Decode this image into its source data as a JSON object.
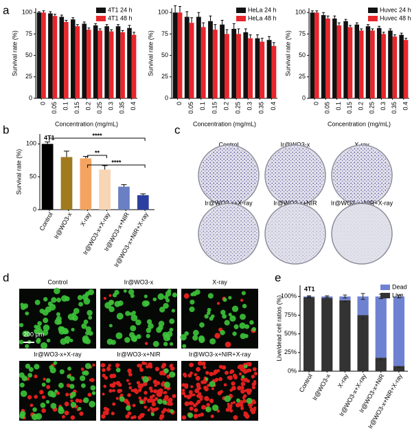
{
  "chart_data": [
    {
      "panel": "a",
      "type": "bar",
      "ylabel": "Survival rate (%)",
      "xlabel": "Concentration (mg/mL)",
      "categories": [
        "0",
        "0.05",
        "0.1",
        "0.15",
        "0.2",
        "0.25",
        "0.3",
        "0.35",
        "0.4"
      ],
      "series": [
        {
          "name": "4T1 24 h",
          "color": "#111111",
          "values": [
            100,
            99,
            95,
            92,
            87,
            85,
            84,
            84,
            82
          ],
          "errors": [
            1,
            2,
            2,
            2,
            2,
            2,
            2,
            2,
            3
          ]
        },
        {
          "name": "4T1 48 h",
          "color": "#e8262c",
          "values": [
            100,
            96,
            89,
            84,
            80,
            79,
            78,
            77,
            74
          ],
          "errors": [
            2,
            2,
            2,
            2,
            2,
            2,
            2,
            2,
            3
          ]
        }
      ],
      "ylim": [
        0,
        105
      ],
      "yticks": [
        0,
        25,
        50,
        75,
        100
      ],
      "legend": "upper right"
    },
    {
      "type": "bar",
      "ylabel": "Survival rate (%)",
      "xlabel": "Concentration (mg/mL)",
      "categories": [
        "0",
        "0.05",
        "0.1",
        "0.15",
        "0.2",
        "0.25",
        "0.3",
        "0.35",
        "0.4"
      ],
      "series": [
        {
          "name": "HeLa 24 h",
          "color": "#111111",
          "values": [
            100,
            95,
            95,
            90,
            86,
            81,
            77,
            70,
            68
          ],
          "errors": [
            8,
            6,
            5,
            6,
            5,
            6,
            4,
            4,
            4
          ]
        },
        {
          "name": "HeLa 48 h",
          "color": "#e8262c",
          "values": [
            100,
            88,
            83,
            80,
            75,
            75,
            70,
            66,
            61
          ],
          "errors": [
            7,
            6,
            5,
            6,
            5,
            6,
            4,
            4,
            4
          ]
        }
      ],
      "ylim": [
        0,
        105
      ],
      "yticks": [
        0,
        25,
        50,
        75,
        100
      ],
      "legend": "upper right"
    },
    {
      "type": "bar",
      "ylabel": "Survival rate (%)",
      "xlabel": "Concentration (mg/mL)",
      "categories": [
        "0",
        "0.05",
        "0.1",
        "0.15",
        "0.2",
        "0.25",
        "0.3",
        "0.35",
        "0.4"
      ],
      "series": [
        {
          "name": "Huvec 24 h",
          "color": "#111111",
          "values": [
            100,
            97,
            93,
            90,
            86,
            84,
            82,
            79,
            74
          ],
          "errors": [
            2,
            3,
            3,
            2,
            2,
            2,
            2,
            2,
            2
          ]
        },
        {
          "name": "Huvec 48 h",
          "color": "#e8262c",
          "values": [
            100,
            93,
            85,
            83,
            79,
            79,
            75,
            72,
            68
          ],
          "errors": [
            2,
            3,
            3,
            2,
            2,
            2,
            2,
            2,
            2
          ]
        }
      ],
      "ylim": [
        0,
        105
      ],
      "yticks": [
        0,
        25,
        50,
        75,
        100
      ],
      "legend": "upper right"
    },
    {
      "panel": "b",
      "type": "bar",
      "ylabel": "Survival rate (%)",
      "annotation": "4T1",
      "categories": [
        "Control",
        "Ir@WO3-x",
        "X-ray",
        "Ir@WO3-x+X-ray",
        "Ir@WO3-x+NIR",
        "Ir@WO3-x+NIR+X-ray"
      ],
      "values": [
        100,
        80,
        78,
        61,
        35,
        22
      ],
      "errors": [
        3,
        9,
        3,
        6,
        3,
        2
      ],
      "colors": [
        "#000000",
        "#a07a1e",
        "#f4a460",
        "#f8d5b4",
        "#6a7fc4",
        "#2b3fa0"
      ],
      "ylim": [
        0,
        115
      ],
      "yticks": [
        0,
        50,
        100
      ],
      "significance": [
        "****",
        "**",
        "****"
      ]
    },
    {
      "panel": "e",
      "type": "stacked_bar",
      "ylabel": "Live/dead cell ratios (%)",
      "annotation": "4T1",
      "categories": [
        "Control",
        "Ir@WO3-x",
        "X-ray",
        "Ir@WO3-x+X-ray",
        "Ir@WO3-x+NIR",
        "Ir@WO3-x+NIR+X-ray"
      ],
      "series": [
        {
          "name": "Live",
          "color": "#333333",
          "values": [
            99,
            98,
            95,
            75,
            18,
            7
          ],
          "errors": [
            1,
            1,
            2,
            5,
            3,
            2
          ]
        },
        {
          "name": "Dead",
          "color": "#6f82d2",
          "values": [
            1,
            2,
            5,
            25,
            82,
            93
          ],
          "errors": [
            1,
            1,
            2,
            4,
            3,
            2
          ]
        }
      ],
      "ylim": [
        0,
        115
      ],
      "yticks": [
        {
          "value": 0,
          "label": "0%"
        },
        {
          "value": 25,
          "label": "25%"
        },
        {
          "value": 50,
          "label": "50%"
        },
        {
          "value": 75,
          "label": "75%"
        },
        {
          "value": 100,
          "label": "100%"
        }
      ],
      "legend": "upper right"
    }
  ],
  "panel_c": {
    "label": "c",
    "images": [
      "Control",
      "Ir@WO3-x",
      "X-ray",
      "Ir@WO3-x+X-ray",
      "Ir@WO3-x+NIR",
      "Ir@WO3-x+NIR+X-ray"
    ]
  },
  "panel_d": {
    "label": "d",
    "images": [
      "Control",
      "Ir@WO3-x",
      "X-ray",
      "Ir@WO3-x+X-ray",
      "Ir@WO3-x+NIR",
      "Ir@WO3-x+NIR+X-ray"
    ],
    "scale_bar": "200 μm"
  }
}
